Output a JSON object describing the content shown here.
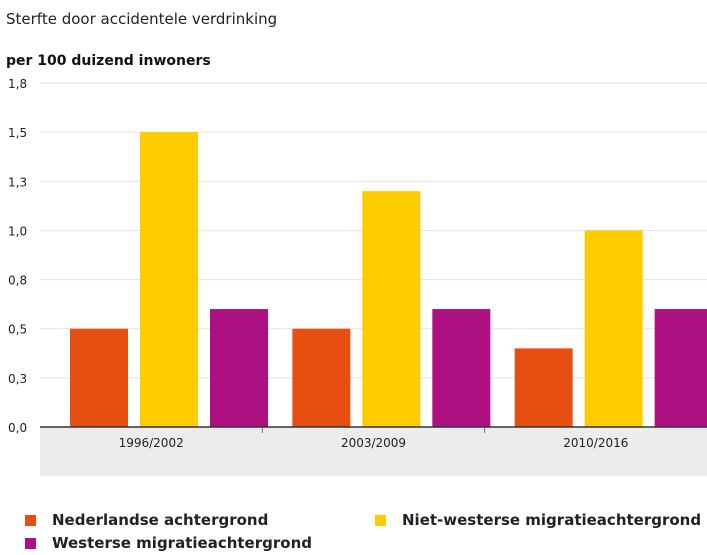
{
  "chart_data": {
    "type": "bar",
    "title": "Sterfte door accidentele verdrinking",
    "ylabel": "per 100 duizend inwoners",
    "xlabel": "",
    "categories": [
      "1996/2002",
      "2003/2009",
      "2010/2016"
    ],
    "yticks": [
      "0,0",
      "0,3",
      "0,5",
      "0,8",
      "1,0",
      "1,3",
      "1,5",
      "1,8"
    ],
    "ylim": [
      0,
      1.75
    ],
    "grid": true,
    "legend_position": "bottom",
    "series": [
      {
        "name": "Nederlandse achtergrond",
        "color": "#e64f11",
        "values": [
          0.5,
          0.5,
          0.4
        ]
      },
      {
        "name": "Niet-westerse migratieachtergrond",
        "color": "#ffcc00",
        "values": [
          1.5,
          1.2,
          1.0
        ]
      },
      {
        "name": "Westerse migratieachtergrond",
        "color": "#ad1181",
        "values": [
          0.6,
          0.6,
          0.6
        ]
      }
    ]
  }
}
